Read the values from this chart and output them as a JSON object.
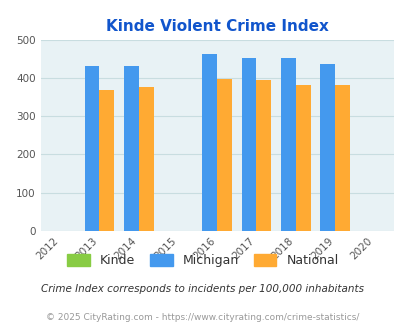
{
  "title": "Kinde Violent Crime Index",
  "years": [
    2012,
    2013,
    2014,
    2015,
    2016,
    2017,
    2018,
    2019,
    2020
  ],
  "bar_years": [
    2013,
    2014,
    2016,
    2017,
    2018,
    2019
  ],
  "kinde_values": [
    0,
    0,
    0,
    0,
    0,
    0
  ],
  "michigan_values": [
    432,
    430,
    462,
    451,
    451,
    437
  ],
  "national_values": [
    368,
    377,
    398,
    394,
    381,
    381
  ],
  "kinde_color": "#88cc44",
  "michigan_color": "#4499ee",
  "national_color": "#ffaa33",
  "bg_color": "#e8f2f5",
  "ylim": [
    0,
    500
  ],
  "yticks": [
    0,
    100,
    200,
    300,
    400,
    500
  ],
  "legend_labels": [
    "Kinde",
    "Michigan",
    "National"
  ],
  "footnote1": "Crime Index corresponds to incidents per 100,000 inhabitants",
  "footnote2": "© 2025 CityRating.com - https://www.cityrating.com/crime-statistics/",
  "title_color": "#1155cc",
  "footnote1_color": "#333333",
  "footnote2_color": "#999999",
  "bar_width": 0.38,
  "grid_color": "#c8dde0"
}
